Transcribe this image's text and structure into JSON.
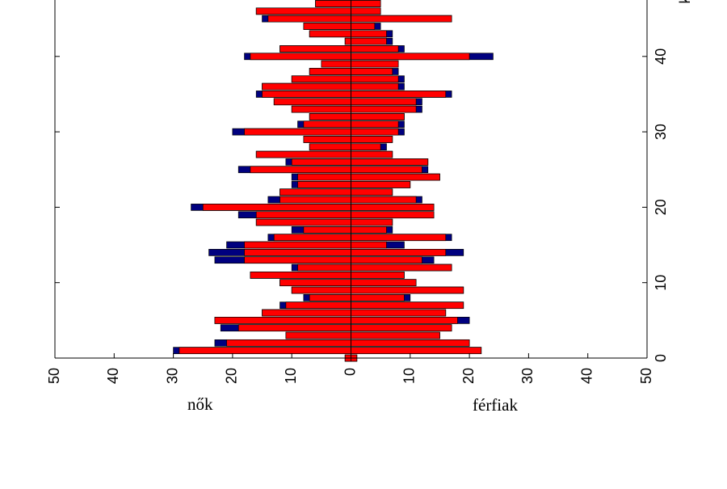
{
  "labels": {
    "left": "nők",
    "right": "férfiak",
    "axis_letter": "k"
  },
  "colors": {
    "background": "#ffffff",
    "primary": "#ff0000",
    "secondary": "#00007f",
    "outline": "#000000"
  },
  "chart_data": {
    "type": "bar",
    "orientation": "horizontal",
    "layout": "back-to-back population pyramid",
    "title": "",
    "group_labels": [
      "nők",
      "férfiak"
    ],
    "xlim": [
      -50,
      50
    ],
    "x_ticks": [
      -50,
      -40,
      -30,
      -20,
      -10,
      0,
      10,
      20,
      30,
      40,
      50
    ],
    "x_tick_labels": [
      "50",
      "40",
      "30",
      "20",
      "10",
      "0",
      "10",
      "20",
      "30",
      "40",
      "50"
    ],
    "y_ticks": [
      0,
      10,
      20,
      30,
      40
    ],
    "y_tick_labels": [
      "0",
      "10",
      "20",
      "30",
      "40"
    ],
    "y_visible_range": [
      0,
      47
    ],
    "tick_labels_rotated": true,
    "grid": false,
    "categories": [
      0,
      1,
      2,
      3,
      4,
      5,
      6,
      7,
      8,
      9,
      10,
      11,
      12,
      13,
      14,
      15,
      16,
      17,
      18,
      19,
      20,
      21,
      22,
      23,
      24,
      25,
      26,
      27,
      28,
      29,
      30,
      31,
      32,
      33,
      34,
      35,
      36,
      37,
      38,
      39,
      40,
      41,
      42,
      43,
      44,
      45,
      46,
      47
    ],
    "series": [
      {
        "color": "#ff0000",
        "left": [
          1,
          29,
          21,
          11,
          19,
          23,
          15,
          11,
          7,
          10,
          12,
          17,
          9,
          18,
          18,
          18,
          13,
          8,
          16,
          16,
          25,
          12,
          12,
          9,
          9,
          17,
          10,
          16,
          7,
          8,
          18,
          8,
          7,
          10,
          13,
          15,
          15,
          10,
          7,
          5,
          17,
          12,
          1,
          7,
          8,
          14,
          16,
          6
        ],
        "right": [
          1,
          22,
          20,
          15,
          17,
          18,
          16,
          19,
          9,
          19,
          11,
          9,
          17,
          12,
          16,
          6,
          16,
          6,
          7,
          14,
          14,
          11,
          7,
          10,
          15,
          12,
          13,
          7,
          5,
          7,
          8,
          8,
          9,
          11,
          11,
          16,
          8,
          8,
          7,
          8,
          20,
          8,
          6,
          6,
          4,
          17,
          5,
          5
        ]
      },
      {
        "color": "#00007f",
        "left": [
          0,
          1,
          2,
          0,
          3,
          0,
          0,
          1,
          1,
          0,
          0,
          0,
          1,
          5,
          6,
          3,
          1,
          2,
          0,
          3,
          2,
          2,
          0,
          1,
          1,
          2,
          1,
          0,
          0,
          0,
          2,
          1,
          0,
          0,
          0,
          1,
          0,
          0,
          0,
          0,
          1,
          0,
          0,
          0,
          0,
          1,
          0,
          0
        ],
        "right": [
          0,
          0,
          0,
          0,
          0,
          2,
          0,
          0,
          1,
          0,
          0,
          0,
          0,
          2,
          3,
          3,
          1,
          1,
          0,
          0,
          0,
          1,
          0,
          0,
          0,
          1,
          0,
          0,
          1,
          0,
          1,
          1,
          0,
          1,
          1,
          1,
          1,
          1,
          1,
          0,
          4,
          1,
          1,
          1,
          1,
          0,
          0,
          0
        ]
      }
    ]
  }
}
